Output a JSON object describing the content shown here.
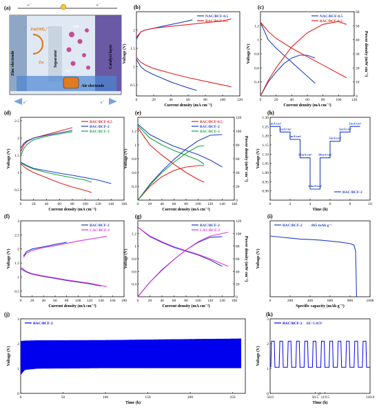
{
  "panel_a": {
    "letter": "(a)",
    "labels": {
      "zinc": "Zinc electrode",
      "zincate": "Zn(OH)₄²⁻",
      "zn": "Zn",
      "separator": "Separator",
      "oh": "OH⁻",
      "o2": "O₂",
      "catalyst": "Catalyst layer",
      "air": "Air electrode",
      "electron": "e⁻"
    }
  },
  "chart_data": [
    {
      "id": "b",
      "letter": "(b)",
      "type": "line",
      "xlabel": "Current density (mA cm⁻²)",
      "ylabel": "Voltage (V)",
      "xlim": [
        0,
        120
      ],
      "ylim": [
        0.2,
        2.5
      ],
      "xticks": [
        0,
        20,
        40,
        60,
        80,
        100,
        120
      ],
      "yticks": [
        0.5,
        1.0,
        1.5,
        2.0
      ],
      "legend": "top-right",
      "series": [
        {
          "name": "NAC/BCF-0.5",
          "color": "#1f3fbf",
          "x": [
            0,
            5,
            10,
            20,
            30,
            40,
            50,
            60,
            70
          ],
          "y": [
            1.2,
            1.0,
            0.9,
            0.78,
            0.68,
            0.58,
            0.5,
            0.42,
            0.35
          ]
        },
        {
          "name": "BAC/BCF-0.5",
          "color": "#e02020",
          "x": [
            0,
            5,
            10,
            20,
            40,
            60,
            80,
            100,
            110
          ],
          "y": [
            1.25,
            1.12,
            1.05,
            0.95,
            0.82,
            0.7,
            0.6,
            0.5,
            0.45
          ]
        },
        {
          "name": "",
          "color": "#1f3fbf",
          "x": [
            0,
            5,
            10,
            20,
            30,
            40,
            50,
            60,
            65
          ],
          "y": [
            1.75,
            1.95,
            2.0,
            2.05,
            2.1,
            2.15,
            2.2,
            2.25,
            2.28
          ]
        },
        {
          "name": "",
          "color": "#e02020",
          "x": [
            0,
            5,
            10,
            20,
            40,
            60,
            80,
            100,
            110
          ],
          "y": [
            1.8,
            1.95,
            2.0,
            2.05,
            2.1,
            2.15,
            2.2,
            2.25,
            2.3
          ]
        }
      ]
    },
    {
      "id": "c",
      "letter": "(c)",
      "type": "line",
      "xlabel": "Current density (mA cm⁻²)",
      "ylabel": "Voltage (V)",
      "y2label": "Power density (mW cm⁻²)",
      "xlim": [
        0,
        120
      ],
      "ylim": [
        0.2,
        1.4
      ],
      "y2lim": [
        0,
        60
      ],
      "xticks": [
        0,
        20,
        40,
        60,
        80,
        100,
        120
      ],
      "yticks": [
        0.4,
        0.6,
        0.8,
        1.0,
        1.2
      ],
      "y2ticks": [
        0,
        10,
        20,
        30,
        40,
        50,
        60
      ],
      "legend": "top-right",
      "series": [
        {
          "name": "NAC/BCF-0.5",
          "color": "#1f3fbf",
          "x": [
            0,
            10,
            20,
            30,
            40,
            50,
            60,
            70
          ],
          "y": [
            1.25,
            1.0,
            0.88,
            0.78,
            0.68,
            0.58,
            0.48,
            0.38
          ]
        },
        {
          "name": "BAC/BCF-0.5",
          "color": "#e02020",
          "x": [
            0,
            10,
            20,
            40,
            60,
            80,
            100,
            110
          ],
          "y": [
            1.25,
            1.12,
            1.02,
            0.88,
            0.76,
            0.64,
            0.52,
            0.46
          ]
        },
        {
          "name": "",
          "color": "#1f3fbf",
          "axis": "right",
          "x": [
            0,
            10,
            20,
            30,
            40,
            50,
            60,
            70
          ],
          "y": [
            0,
            10,
            17,
            23,
            27,
            29,
            29,
            27
          ]
        },
        {
          "name": "",
          "color": "#e02020",
          "axis": "right",
          "x": [
            0,
            10,
            20,
            40,
            60,
            80,
            100,
            110
          ],
          "y": [
            0,
            11,
            20,
            35,
            45,
            51,
            53,
            51
          ]
        }
      ]
    },
    {
      "id": "d",
      "letter": "(d)",
      "type": "line",
      "xlabel": "Current density (mA cm⁻²)",
      "ylabel": "Voltage (V)",
      "xlim": [
        0,
        160
      ],
      "ylim": [
        0.2,
        2.6
      ],
      "xticks": [
        0,
        20,
        40,
        60,
        80,
        100,
        120,
        140,
        160
      ],
      "yticks": [
        0.5,
        1.0,
        1.5,
        2.0,
        2.5
      ],
      "legend": "top-right",
      "series": [
        {
          "name": "BAC/BCF-0.5",
          "color": "#e02020",
          "x": [
            0,
            10,
            20,
            40,
            60,
            80,
            100,
            110
          ],
          "y": [
            1.25,
            1.1,
            1.0,
            0.85,
            0.7,
            0.58,
            0.48,
            0.42
          ]
        },
        {
          "name": "BAC/BCF-2",
          "color": "#1f3fbf",
          "x": [
            0,
            10,
            20,
            40,
            60,
            80,
            100,
            120,
            140
          ],
          "y": [
            1.3,
            1.2,
            1.12,
            1.05,
            0.98,
            0.92,
            0.85,
            0.78,
            0.68
          ]
        },
        {
          "name": "BAC/BCF-3",
          "color": "#18a040",
          "x": [
            0,
            10,
            20,
            40,
            60,
            80,
            100,
            110
          ],
          "y": [
            1.28,
            1.18,
            1.1,
            1.0,
            0.92,
            0.85,
            0.78,
            0.72
          ]
        },
        {
          "name": "",
          "color": "#e02020",
          "x": [
            0,
            5,
            10,
            20,
            40,
            60,
            80
          ],
          "y": [
            1.6,
            1.8,
            1.9,
            2.0,
            2.1,
            2.2,
            2.3
          ]
        },
        {
          "name": "",
          "color": "#1f3fbf",
          "x": [
            0,
            5,
            10,
            20,
            40,
            60,
            80
          ],
          "y": [
            1.7,
            1.85,
            1.92,
            2.0,
            2.08,
            2.15,
            2.22
          ]
        },
        {
          "name": "",
          "color": "#18a040",
          "x": [
            0,
            5,
            10,
            20,
            40,
            60,
            80
          ],
          "y": [
            1.5,
            1.7,
            1.82,
            1.95,
            2.05,
            2.12,
            2.18
          ]
        }
      ]
    },
    {
      "id": "e",
      "letter": "(e)",
      "type": "line",
      "xlabel": "Current density (mA cm⁻²)",
      "ylabel": "Voltage (V)",
      "y2label": "Power density (mW cm⁻²)",
      "xlim": [
        0,
        160
      ],
      "ylim": [
        0.2,
        1.4
      ],
      "y2lim": [
        0,
        120
      ],
      "xticks": [
        0,
        20,
        40,
        60,
        80,
        100,
        120,
        140,
        160
      ],
      "yticks": [
        0.4,
        0.6,
        0.8,
        1.0,
        1.2
      ],
      "y2ticks": [
        0,
        20,
        40,
        60,
        80,
        100,
        120
      ],
      "legend": "top-right",
      "series": [
        {
          "name": "BAC/BCF-0.5",
          "color": "#e02020",
          "x": [
            0,
            20,
            40,
            60,
            80,
            100,
            110
          ],
          "y": [
            1.25,
            1.0,
            0.85,
            0.72,
            0.6,
            0.5,
            0.46
          ]
        },
        {
          "name": "BAC/BCF-2",
          "color": "#1f3fbf",
          "x": [
            0,
            20,
            40,
            60,
            80,
            100,
            120,
            140
          ],
          "y": [
            1.3,
            1.15,
            1.06,
            0.98,
            0.92,
            0.86,
            0.78,
            0.68
          ]
        },
        {
          "name": "BAC/BCF-3",
          "color": "#18a040",
          "x": [
            0,
            20,
            40,
            60,
            80,
            100,
            110
          ],
          "y": [
            1.28,
            1.1,
            1.0,
            0.92,
            0.85,
            0.78,
            0.72
          ]
        },
        {
          "name": "",
          "color": "#e02020",
          "axis": "right",
          "x": [
            0,
            20,
            40,
            60,
            80,
            100,
            110
          ],
          "y": [
            0,
            20,
            34,
            43,
            48,
            50,
            50
          ]
        },
        {
          "name": "",
          "color": "#1f3fbf",
          "axis": "right",
          "x": [
            0,
            20,
            40,
            60,
            80,
            100,
            120,
            140
          ],
          "y": [
            0,
            23,
            42,
            59,
            74,
            86,
            94,
            95
          ]
        },
        {
          "name": "",
          "color": "#18a040",
          "axis": "right",
          "x": [
            0,
            20,
            40,
            60,
            80,
            100,
            110
          ],
          "y": [
            0,
            22,
            40,
            55,
            68,
            78,
            79
          ]
        }
      ]
    },
    {
      "id": "h",
      "letter": "(h)",
      "type": "line",
      "xlabel": "Time (h)",
      "ylabel": "Voltage (V)",
      "xlim": [
        0,
        10
      ],
      "ylim": [
        0.85,
        1.3
      ],
      "xticks": [
        0,
        2,
        4,
        6,
        8,
        10
      ],
      "yticks": [
        0.9,
        0.95,
        1.0,
        1.05,
        1.1,
        1.15,
        1.2,
        1.25,
        1.3
      ],
      "legend": "bottom-right",
      "step_labels": [
        "1mA/cm²",
        "2mA/cm²",
        "5mA/cm²",
        "10mA/cm²",
        "20mA/cm²",
        "10mA/cm²",
        "5mA/cm²",
        "2mA/cm²",
        "1mA/cm²"
      ],
      "series": [
        {
          "name": "BAC/BCF-2",
          "color": "#1f3fbf",
          "x": [
            0,
            1,
            1,
            2,
            2,
            3,
            3,
            4,
            4,
            5,
            5,
            6,
            6,
            7,
            7,
            8,
            8,
            9
          ],
          "y": [
            1.25,
            1.25,
            1.22,
            1.22,
            1.18,
            1.18,
            1.08,
            1.08,
            0.91,
            0.91,
            1.08,
            1.08,
            1.17,
            1.17,
            1.22,
            1.22,
            1.25,
            1.25
          ]
        }
      ]
    },
    {
      "id": "f",
      "letter": "(f)",
      "type": "line",
      "xlabel": "Current density (mA cm⁻²)",
      "ylabel": "Voltage (V)",
      "xlim": [
        0,
        180
      ],
      "ylim": [
        0.3,
        3.0
      ],
      "xticks": [
        0,
        20,
        40,
        60,
        80,
        100,
        120,
        140,
        160,
        180
      ],
      "yticks": [
        0.5,
        1.0,
        1.5,
        2.0,
        2.5,
        3.0
      ],
      "legend": "top-right",
      "series": [
        {
          "name": "BAC/BCF-2",
          "color": "#1f3fbf",
          "x": [
            0,
            10,
            20,
            40,
            60,
            80,
            100,
            120,
            140
          ],
          "y": [
            1.3,
            1.18,
            1.1,
            1.02,
            0.95,
            0.88,
            0.82,
            0.76,
            0.68
          ]
        },
        {
          "name": "CAC/BCF-2",
          "color": "#e030e0",
          "x": [
            0,
            10,
            20,
            40,
            60,
            80,
            100,
            120,
            150
          ],
          "y": [
            1.35,
            1.2,
            1.12,
            1.04,
            0.97,
            0.9,
            0.84,
            0.78,
            0.66
          ]
        },
        {
          "name": "",
          "color": "#1f3fbf",
          "x": [
            5,
            10,
            20,
            40,
            60,
            80
          ],
          "y": [
            1.75,
            1.9,
            2.0,
            2.08,
            2.16,
            2.24
          ]
        },
        {
          "name": "",
          "color": "#e030e0",
          "x": [
            5,
            10,
            20,
            40,
            60,
            80,
            100,
            120,
            150
          ],
          "y": [
            1.7,
            1.85,
            1.95,
            2.05,
            2.12,
            2.2,
            2.28,
            2.35,
            2.45
          ]
        }
      ]
    },
    {
      "id": "g",
      "letter": "(g)",
      "type": "line",
      "xlabel": "Current density (mA cm⁻²)",
      "ylabel": "Voltage (V)",
      "y2label": "Power density (mW cm⁻²)",
      "xlim": [
        0,
        160
      ],
      "ylim": [
        0.2,
        1.4
      ],
      "y2lim": [
        0,
        120
      ],
      "xticks": [
        0,
        20,
        40,
        60,
        80,
        100,
        120,
        140,
        160
      ],
      "yticks": [
        0.4,
        0.6,
        0.8,
        1.0,
        1.2
      ],
      "y2ticks": [
        0,
        20,
        40,
        60,
        80,
        100,
        120
      ],
      "legend": "top-right",
      "series": [
        {
          "name": "BAC/BCF-2",
          "color": "#1f3fbf",
          "x": [
            0,
            20,
            40,
            60,
            80,
            100,
            120,
            140
          ],
          "y": [
            1.3,
            1.15,
            1.06,
            0.98,
            0.92,
            0.86,
            0.78,
            0.68
          ]
        },
        {
          "name": "CAC/BCF-2",
          "color": "#e030e0",
          "x": [
            0,
            20,
            40,
            60,
            80,
            100,
            120,
            150
          ],
          "y": [
            1.3,
            1.16,
            1.07,
            0.99,
            0.93,
            0.87,
            0.8,
            0.68
          ]
        },
        {
          "name": "",
          "color": "#1f3fbf",
          "axis": "right",
          "x": [
            0,
            20,
            40,
            60,
            80,
            100,
            120,
            140
          ],
          "y": [
            0,
            23,
            42,
            59,
            74,
            86,
            94,
            95
          ]
        },
        {
          "name": "",
          "color": "#e030e0",
          "axis": "right",
          "x": [
            0,
            20,
            40,
            60,
            80,
            100,
            120,
            150
          ],
          "y": [
            0,
            23,
            43,
            59,
            74,
            87,
            96,
            102
          ]
        }
      ]
    },
    {
      "id": "i",
      "letter": "(i)",
      "type": "line",
      "xlabel": "Specific capacity (mAh g⁻¹)",
      "ylabel": "Voltage (V)",
      "xlim": [
        0,
        1000
      ],
      "ylim": [
        0.0,
        1.5
      ],
      "xticks": [
        0,
        200,
        400,
        600,
        800,
        1000
      ],
      "yticks": [],
      "legend": "top-left",
      "annotation": "865 mAh g⁻¹",
      "series": [
        {
          "name": "BAC/BCF-2",
          "color": "#1f3fbf",
          "x": [
            0,
            100,
            200,
            300,
            400,
            500,
            600,
            700,
            800,
            840,
            855,
            860,
            865
          ],
          "y": [
            1.2,
            1.18,
            1.16,
            1.14,
            1.13,
            1.12,
            1.1,
            1.08,
            1.05,
            1.02,
            0.9,
            0.5,
            0.0
          ]
        }
      ]
    },
    {
      "id": "j",
      "letter": "(j)",
      "type": "line",
      "xlabel": "Time (h)",
      "ylabel": "Voltage (V)",
      "xlim": [
        0,
        265
      ],
      "ylim": [
        0,
        3
      ],
      "xticks": [
        0,
        50,
        100,
        150,
        200,
        250
      ],
      "yticks": [
        0,
        1,
        2,
        3
      ],
      "legend": "top-left",
      "series": [
        {
          "name": "BAC/BCF-2",
          "color": "#0000ee",
          "band": true,
          "x": [
            0,
            5,
            20,
            100,
            200,
            260
          ],
          "y_low": [
            0.75,
            0.95,
            1.0,
            1.02,
            1.02,
            1.02
          ],
          "y_high": [
            2.1,
            2.12,
            2.13,
            2.14,
            2.18,
            2.2
          ]
        }
      ]
    },
    {
      "id": "k",
      "letter": "(k)",
      "type": "line",
      "xlabel": "Time (h)",
      "ylabel": "Voltage (V)",
      "xlim": [
        50,
        120
      ],
      "ylim": [
        0,
        3
      ],
      "xticks": [
        50.0,
        50.5,
        119.5,
        120.0
      ],
      "yticks": [
        0,
        1,
        2,
        3
      ],
      "legend": "top-left",
      "annotation": "ΔE=1.05V",
      "series": [
        {
          "name": "BAC/BCF-2",
          "color": "#0000ee",
          "cycles": 12,
          "y_low": 1.05,
          "y_high": 2.1
        }
      ]
    }
  ]
}
